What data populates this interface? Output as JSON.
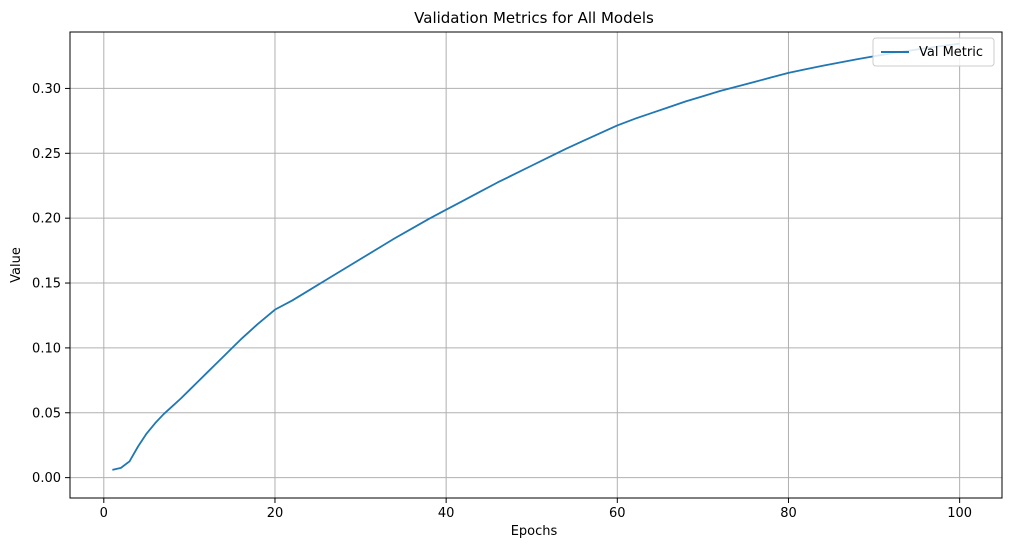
{
  "chart_data": {
    "type": "line",
    "title": "Validation Metrics for All Models",
    "xlabel": "Epochs",
    "ylabel": "Value",
    "xlim": [
      -3.95,
      104.95
    ],
    "ylim": [
      -0.0157,
      0.3435
    ],
    "xticks": [
      0,
      20,
      40,
      60,
      80,
      100
    ],
    "yticks": [
      0.0,
      0.05,
      0.1,
      0.15,
      0.2,
      0.25,
      0.3
    ],
    "ytick_labels": [
      "0.00",
      "0.05",
      "0.10",
      "0.15",
      "0.20",
      "0.25",
      "0.30"
    ],
    "grid": true,
    "legend_position": "top-right",
    "colors": {
      "series": "#1f77b4",
      "grid": "#b0b0b0"
    },
    "series": [
      {
        "name": "Val Metric",
        "x": [
          1,
          2,
          3,
          4,
          5,
          6,
          7,
          8,
          9,
          10,
          11,
          12,
          13,
          14,
          15,
          16,
          17,
          18,
          19,
          20,
          22,
          24,
          26,
          28,
          30,
          32,
          34,
          36,
          38,
          40,
          42,
          44,
          46,
          48,
          50,
          52,
          54,
          56,
          58,
          60,
          62,
          64,
          66,
          68,
          70,
          72,
          74,
          76,
          78,
          80,
          82,
          84,
          86,
          88,
          90,
          92,
          94,
          96,
          98,
          100
        ],
        "y": [
          0.006,
          0.0075,
          0.0125,
          0.024,
          0.034,
          0.042,
          0.049,
          0.055,
          0.061,
          0.0675,
          0.074,
          0.0805,
          0.087,
          0.0935,
          0.1,
          0.1065,
          0.1125,
          0.1185,
          0.124,
          0.1295,
          0.1365,
          0.1445,
          0.1525,
          0.1605,
          0.1685,
          0.1765,
          0.1845,
          0.192,
          0.1995,
          0.2065,
          0.2135,
          0.2205,
          0.2275,
          0.234,
          0.2405,
          0.247,
          0.2535,
          0.2595,
          0.2655,
          0.2715,
          0.2765,
          0.281,
          0.2855,
          0.29,
          0.294,
          0.298,
          0.3015,
          0.305,
          0.3085,
          0.312,
          0.3148,
          0.3175,
          0.32,
          0.3225,
          0.3248,
          0.327,
          0.329,
          0.331,
          0.3328,
          0.3345
        ]
      }
    ]
  }
}
